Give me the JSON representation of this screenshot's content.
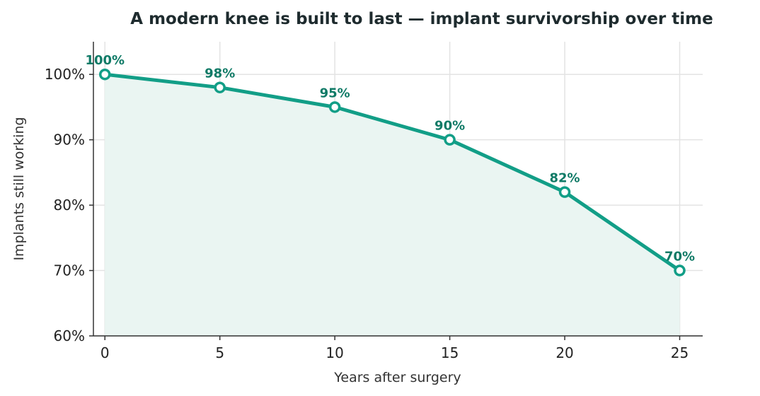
{
  "chart_data": {
    "type": "line",
    "title": "A modern knee is built to last — implant survivorship over time",
    "xlabel": "Years after surgery",
    "ylabel": "Implants still working",
    "x": [
      0,
      5,
      10,
      15,
      20,
      25
    ],
    "series": [
      {
        "values": [
          100,
          98,
          95,
          90,
          82,
          70
        ]
      }
    ],
    "data_labels": [
      "100%",
      "98%",
      "95%",
      "90%",
      "82%",
      "70%"
    ],
    "x_ticks": [
      0,
      5,
      10,
      15,
      20,
      25
    ],
    "x_tick_labels": [
      "0",
      "5",
      "10",
      "15",
      "20",
      "25"
    ],
    "y_ticks": [
      60,
      70,
      80,
      90,
      100
    ],
    "y_tick_labels": [
      "60%",
      "70%",
      "80%",
      "90%",
      "100%"
    ],
    "xlim": [
      -0.5,
      26
    ],
    "ylim": [
      60,
      105
    ],
    "grid": true,
    "colors": {
      "line": "#129e87",
      "fill": "#eaf5f2",
      "label": "#0f7a66",
      "grid": "#e3e3e3",
      "axis": "#333333"
    }
  }
}
